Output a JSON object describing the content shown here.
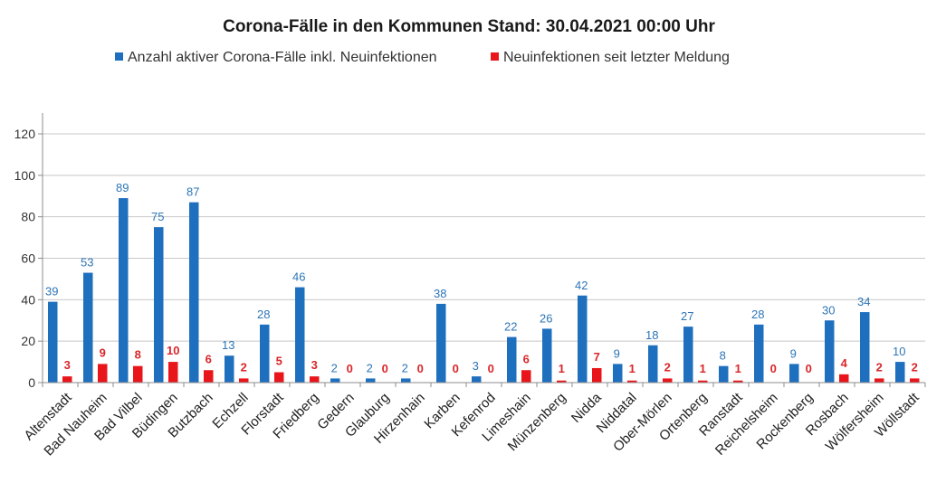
{
  "chart_data": {
    "type": "bar",
    "title": "Corona-Fälle in den Kommunen Stand: 30.04.2021 00:00 Uhr",
    "legend_position": "top",
    "grid": true,
    "ylim": [
      0,
      120
    ],
    "yticks": [
      "0",
      "20",
      "40",
      "60",
      "80",
      "100",
      "120"
    ],
    "categories": [
      "Altenstadt",
      "Bad Nauheim",
      "Bad Vilbel",
      "Büdingen",
      "Butzbach",
      "Echzell",
      "Florstadt",
      "Friedberg",
      "Gedern",
      "Glauburg",
      "Hirzenhain",
      "Karben",
      "Kefenrod",
      "Limeshain",
      "Münzenberg",
      "Nidda",
      "Niddatal",
      "Ober-Mörlen",
      "Ortenberg",
      "Ranstadt",
      "Reichelsheim",
      "Rockenberg",
      "Rosbach",
      "Wölfersheim",
      "Wöllstadt"
    ],
    "series": [
      {
        "name": "Anzahl aktiver Corona-Fälle inkl. Neuinfektionen",
        "color": "#1f6fbf",
        "label_color": "#2e75b6",
        "values": [
          39,
          53,
          89,
          75,
          87,
          13,
          28,
          46,
          2,
          2,
          2,
          38,
          3,
          22,
          26,
          42,
          9,
          18,
          27,
          8,
          28,
          9,
          30,
          34,
          10
        ]
      },
      {
        "name": "Neuinfektionen seit letzter Meldung",
        "color": "#e8161b",
        "label_color": "#d9262a",
        "values": [
          3,
          9,
          8,
          10,
          6,
          2,
          5,
          3,
          0,
          0,
          0,
          0,
          0,
          6,
          1,
          7,
          1,
          2,
          1,
          1,
          0,
          0,
          4,
          2,
          2
        ]
      }
    ]
  }
}
